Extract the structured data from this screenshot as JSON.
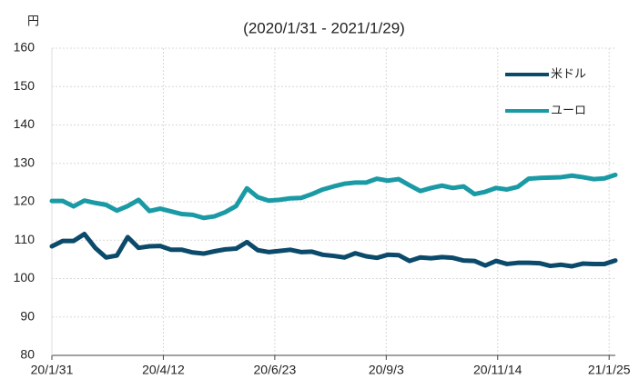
{
  "chart_data": {
    "type": "line",
    "title": "(2020/1/31 - 2021/1/29)",
    "y_label": "円",
    "x": [
      "20/1/31",
      "20/2/7",
      "20/2/14",
      "20/2/21",
      "20/2/28",
      "20/3/6",
      "20/3/13",
      "20/3/20",
      "20/3/27",
      "20/4/3",
      "20/4/10",
      "20/4/17",
      "20/4/24",
      "20/5/1",
      "20/5/8",
      "20/5/15",
      "20/5/22",
      "20/5/29",
      "20/6/5",
      "20/6/12",
      "20/6/19",
      "20/6/26",
      "20/7/3",
      "20/7/10",
      "20/7/17",
      "20/7/24",
      "20/7/31",
      "20/8/7",
      "20/8/14",
      "20/8/21",
      "20/8/28",
      "20/9/4",
      "20/9/11",
      "20/9/18",
      "20/9/25",
      "20/10/2",
      "20/10/9",
      "20/10/16",
      "20/10/23",
      "20/10/30",
      "20/11/6",
      "20/11/13",
      "20/11/20",
      "20/11/27",
      "20/12/4",
      "20/12/11",
      "20/12/18",
      "20/12/25",
      "21/1/1",
      "21/1/8",
      "21/1/15",
      "21/1/22",
      "21/1/29"
    ],
    "series": [
      {
        "name": "米ドル",
        "color": "#0b4a6b",
        "values": [
          108.4,
          109.8,
          109.8,
          111.6,
          108.0,
          105.5,
          106.0,
          110.8,
          108.0,
          108.4,
          108.5,
          107.5,
          107.5,
          106.8,
          106.5,
          107.1,
          107.6,
          107.8,
          109.5,
          107.4,
          106.9,
          107.2,
          107.5,
          106.9,
          107.0,
          106.2,
          105.9,
          105.5,
          106.6,
          105.8,
          105.4,
          106.2,
          106.1,
          104.6,
          105.5,
          105.3,
          105.6,
          105.4,
          104.7,
          104.6,
          103.4,
          104.6,
          103.8,
          104.1,
          104.1,
          104.0,
          103.3,
          103.6,
          103.2,
          103.9,
          103.8,
          103.8,
          104.7
        ]
      },
      {
        "name": "ユーロ",
        "color": "#1a9aa5",
        "values": [
          120.2,
          120.2,
          118.8,
          120.3,
          119.7,
          119.2,
          117.7,
          118.9,
          120.5,
          117.6,
          118.2,
          117.5,
          116.8,
          116.6,
          115.8,
          116.2,
          117.3,
          118.9,
          123.5,
          121.2,
          120.3,
          120.5,
          120.9,
          121.0,
          122.0,
          123.2,
          124.0,
          124.7,
          125.0,
          125.0,
          126.0,
          125.5,
          125.9,
          124.3,
          122.8,
          123.6,
          124.2,
          123.6,
          124.0,
          122.0,
          122.6,
          123.6,
          123.2,
          123.9,
          126.0,
          126.2,
          126.3,
          126.4,
          126.8,
          126.4,
          125.9,
          126.1,
          127.0
        ]
      }
    ],
    "xlim": [
      "20/1/31",
      "21/1/29"
    ],
    "xticks": [
      "20/1/31",
      "20/4/12",
      "20/6/23",
      "20/9/3",
      "20/11/14",
      "21/1/25"
    ],
    "ylim": [
      80,
      160
    ],
    "yticks": [
      80,
      90,
      100,
      110,
      120,
      130,
      140,
      150,
      160
    ],
    "grid": true,
    "legend": "upper right"
  }
}
